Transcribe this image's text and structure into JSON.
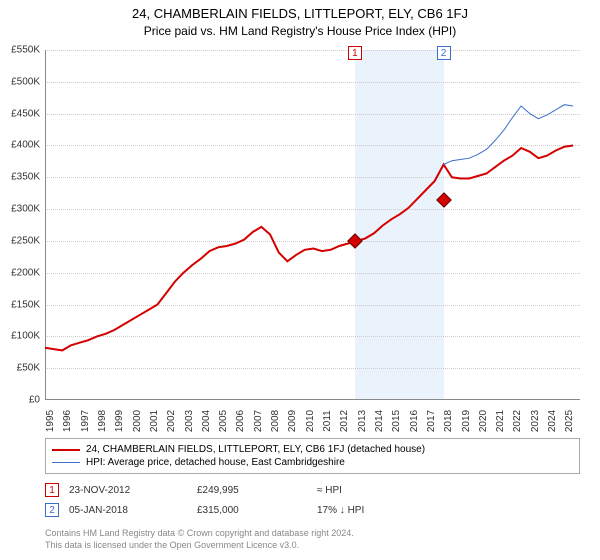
{
  "title": "24, CHAMBERLAIN FIELDS, LITTLEPORT, ELY, CB6 1FJ",
  "subtitle": "Price paid vs. HM Land Registry's House Price Index (HPI)",
  "chart": {
    "type": "line",
    "ylim": [
      0,
      550000
    ],
    "ytick_step": 50000,
    "y_prefix": "£",
    "xlim": [
      1995,
      2025.9
    ],
    "xticks": [
      1995,
      1996,
      1997,
      1998,
      1999,
      2000,
      2001,
      2002,
      2003,
      2004,
      2005,
      2006,
      2007,
      2008,
      2009,
      2010,
      2011,
      2012,
      2013,
      2014,
      2015,
      2016,
      2017,
      2018,
      2019,
      2020,
      2021,
      2022,
      2023,
      2024,
      2025
    ],
    "background_color": "#ffffff",
    "grid_color": "#cccccc",
    "axis_color": "#888888",
    "tick_fontsize": 10,
    "shaded_ranges": [
      {
        "x0": 2012.9,
        "x1": 2018.02,
        "color": "#eaf2fb"
      }
    ],
    "flags": [
      {
        "idx": "1",
        "x": 2012.9,
        "color": "#d40000"
      },
      {
        "idx": "2",
        "x": 2018.02,
        "color": "#3b6fc9"
      }
    ],
    "series": [
      {
        "name": "subject",
        "label": "24, CHAMBERLAIN FIELDS, LITTLEPORT, ELY, CB6 1FJ (detached house)",
        "color": "#d40000",
        "line_width": 2,
        "data": [
          [
            1995,
            82000
          ],
          [
            1995.5,
            80000
          ],
          [
            1996,
            78000
          ],
          [
            1996.5,
            86000
          ],
          [
            1997,
            90000
          ],
          [
            1997.5,
            94000
          ],
          [
            1998,
            100000
          ],
          [
            1998.5,
            104000
          ],
          [
            1999,
            110000
          ],
          [
            1999.5,
            118000
          ],
          [
            2000,
            126000
          ],
          [
            2000.5,
            134000
          ],
          [
            2001,
            142000
          ],
          [
            2001.5,
            150000
          ],
          [
            2002,
            168000
          ],
          [
            2002.5,
            186000
          ],
          [
            2003,
            200000
          ],
          [
            2003.5,
            212000
          ],
          [
            2004,
            222000
          ],
          [
            2004.5,
            234000
          ],
          [
            2005,
            240000
          ],
          [
            2005.5,
            242000
          ],
          [
            2006,
            246000
          ],
          [
            2006.5,
            252000
          ],
          [
            2007,
            264000
          ],
          [
            2007.5,
            272000
          ],
          [
            2008,
            260000
          ],
          [
            2008.5,
            232000
          ],
          [
            2009,
            218000
          ],
          [
            2009.5,
            228000
          ],
          [
            2010,
            236000
          ],
          [
            2010.5,
            238000
          ],
          [
            2011,
            234000
          ],
          [
            2011.5,
            236000
          ],
          [
            2012,
            242000
          ],
          [
            2012.5,
            246000
          ],
          [
            2012.9,
            249995
          ],
          [
            2013,
            250000
          ],
          [
            2013.5,
            254000
          ],
          [
            2014,
            262000
          ],
          [
            2014.5,
            274000
          ],
          [
            2015,
            284000
          ],
          [
            2015.5,
            292000
          ],
          [
            2016,
            302000
          ],
          [
            2016.5,
            316000
          ],
          [
            2017,
            330000
          ],
          [
            2017.5,
            344000
          ],
          [
            2018.02,
            370000
          ],
          [
            2018.5,
            350000
          ],
          [
            2019,
            348000
          ],
          [
            2019.5,
            348000
          ],
          [
            2020,
            352000
          ],
          [
            2020.5,
            356000
          ],
          [
            2021,
            366000
          ],
          [
            2021.5,
            376000
          ],
          [
            2022,
            384000
          ],
          [
            2022.5,
            396000
          ],
          [
            2023,
            390000
          ],
          [
            2023.5,
            380000
          ],
          [
            2024,
            384000
          ],
          [
            2024.5,
            392000
          ],
          [
            2025,
            398000
          ],
          [
            2025.5,
            400000
          ]
        ]
      },
      {
        "name": "hpi",
        "label": "HPI: Average price, detached house, East Cambridgeshire",
        "color": "#3b6fc9",
        "line_width": 1,
        "start_x": 2018.02,
        "data": [
          [
            2018.02,
            370000
          ],
          [
            2018.5,
            376000
          ],
          [
            2019,
            378000
          ],
          [
            2019.5,
            380000
          ],
          [
            2020,
            386000
          ],
          [
            2020.5,
            394000
          ],
          [
            2021,
            408000
          ],
          [
            2021.5,
            424000
          ],
          [
            2022,
            444000
          ],
          [
            2022.5,
            462000
          ],
          [
            2023,
            450000
          ],
          [
            2023.5,
            442000
          ],
          [
            2024,
            448000
          ],
          [
            2024.5,
            456000
          ],
          [
            2025,
            464000
          ],
          [
            2025.5,
            462000
          ]
        ]
      }
    ],
    "markers": [
      {
        "x": 2012.9,
        "y": 249995,
        "color": "#d40000"
      },
      {
        "x": 2018.02,
        "y": 315000,
        "color": "#d40000"
      }
    ]
  },
  "sales": [
    {
      "idx": "1",
      "date": "23-NOV-2012",
      "price": "£249,995",
      "vs_hpi": "≈ HPI",
      "flag_color": "#d40000"
    },
    {
      "idx": "2",
      "date": "05-JAN-2018",
      "price": "£315,000",
      "vs_hpi": "17% ↓ HPI",
      "flag_color": "#3b6fc9"
    }
  ],
  "footer_l1": "Contains HM Land Registry data © Crown copyright and database right 2024.",
  "footer_l2": "This data is licensed under the Open Government Licence v3.0."
}
